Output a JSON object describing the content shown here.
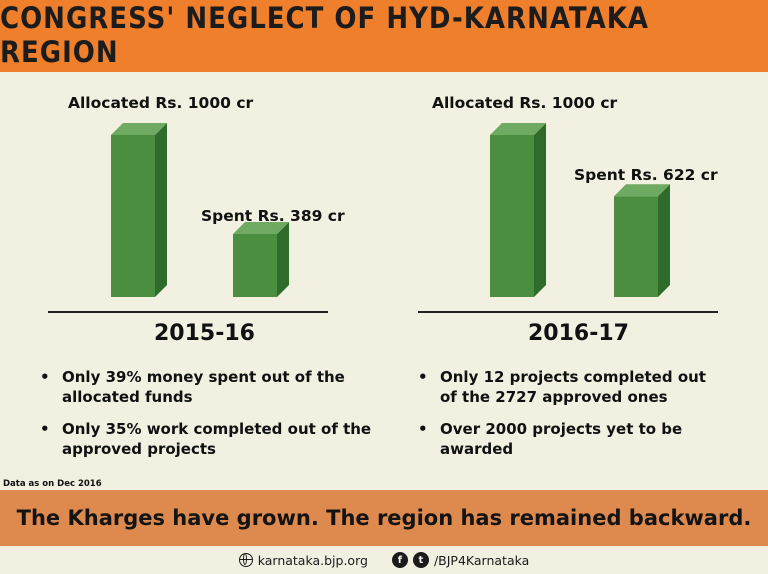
{
  "header": {
    "title": "CONGRESS' NEGLECT OF HYD-KARNATAKA REGION"
  },
  "chart_data": [
    {
      "type": "bar",
      "title": "",
      "categories": [
        "Allocated",
        "Spent"
      ],
      "values": [
        1000,
        389
      ],
      "unit": "Rs. cr",
      "data_labels": [
        "Allocated Rs. 1000 cr",
        "Spent Rs. 389 cr"
      ],
      "xlabel": "2015-16",
      "ylabel": "",
      "ylim": [
        0,
        1000
      ],
      "grid": false,
      "color": "#4a8c3f"
    },
    {
      "type": "bar",
      "title": "",
      "categories": [
        "Allocated",
        "Spent"
      ],
      "values": [
        1000,
        622
      ],
      "unit": "Rs. cr",
      "data_labels": [
        "Allocated Rs. 1000 cr",
        "Spent Rs. 622 cr"
      ],
      "xlabel": "2016-17",
      "ylabel": "",
      "ylim": [
        0,
        1000
      ],
      "grid": false,
      "color": "#4a8c3f"
    }
  ],
  "notes": {
    "left": [
      "Only 39% money spent out of the allocated funds",
      "Only 35% work completed out of the approved projects"
    ],
    "right": [
      "Only 12 projects completed out of the 2727 approved ones",
      "Over 2000 projects yet to be awarded"
    ]
  },
  "footnote": "Data as on Dec 2016",
  "banner": "The Kharges have grown. The region has remained backward.",
  "footer": {
    "website": "karnataka.bjp.org",
    "facebook_glyph": "f",
    "twitter_glyph": "t",
    "handle": "/BJP4Karnataka"
  },
  "icons": {
    "website": "globe-icon",
    "facebook": "facebook-icon",
    "twitter": "twitter-icon"
  },
  "colors": {
    "header": "#f07f2b",
    "banner": "#de8a4e",
    "background": "#f1f0e1",
    "bar": "#4a8c3f"
  }
}
